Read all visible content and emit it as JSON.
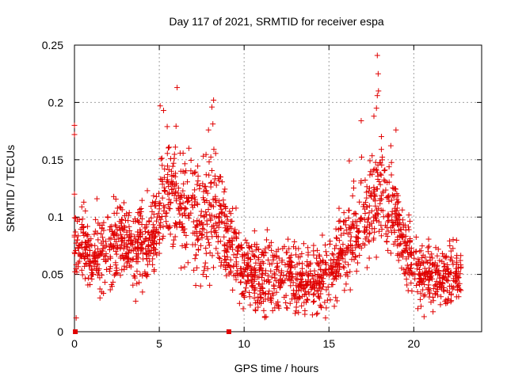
{
  "chart_data": {
    "type": "scatter",
    "title": "Day 117 of 2021, SRMTID for receiver espa",
    "xlabel": "GPS time / hours",
    "ylabel": "SRMTID / TECUs",
    "xlim": [
      0,
      24
    ],
    "ylim": [
      0,
      0.25
    ],
    "x_ticks": [
      0,
      5,
      10,
      15,
      20
    ],
    "x_tick_labels": [
      "0",
      "5",
      "10",
      "15",
      "20"
    ],
    "y_ticks": [
      0,
      0.05,
      0.1,
      0.15,
      0.2,
      0.25
    ],
    "y_tick_labels": [
      "0",
      "0.05",
      "0.1",
      "0.15",
      "0.2",
      "0.25"
    ],
    "grid": true,
    "marker": "+",
    "series_color": "#e00000",
    "profile": [
      {
        "x": 0.0,
        "y": 0.085
      },
      {
        "x": 1.0,
        "y": 0.065
      },
      {
        "x": 2.0,
        "y": 0.075
      },
      {
        "x": 3.0,
        "y": 0.075
      },
      {
        "x": 4.0,
        "y": 0.075
      },
      {
        "x": 4.8,
        "y": 0.085
      },
      {
        "x": 5.2,
        "y": 0.125
      },
      {
        "x": 5.8,
        "y": 0.12
      },
      {
        "x": 6.5,
        "y": 0.105
      },
      {
        "x": 7.5,
        "y": 0.095
      },
      {
        "x": 8.2,
        "y": 0.11
      },
      {
        "x": 9.0,
        "y": 0.085
      },
      {
        "x": 9.8,
        "y": 0.06
      },
      {
        "x": 11.0,
        "y": 0.045
      },
      {
        "x": 12.0,
        "y": 0.05
      },
      {
        "x": 13.0,
        "y": 0.05
      },
      {
        "x": 14.0,
        "y": 0.045
      },
      {
        "x": 15.0,
        "y": 0.05
      },
      {
        "x": 15.8,
        "y": 0.07
      },
      {
        "x": 16.5,
        "y": 0.08
      },
      {
        "x": 17.2,
        "y": 0.1
      },
      {
        "x": 18.0,
        "y": 0.12
      },
      {
        "x": 18.8,
        "y": 0.105
      },
      {
        "x": 19.5,
        "y": 0.07
      },
      {
        "x": 20.5,
        "y": 0.05
      },
      {
        "x": 21.5,
        "y": 0.048
      },
      {
        "x": 22.8,
        "y": 0.05
      }
    ],
    "spread": [
      {
        "x": 0,
        "y": 0.03
      },
      {
        "x": 5,
        "y": 0.035
      },
      {
        "x": 6,
        "y": 0.055
      },
      {
        "x": 8.5,
        "y": 0.045
      },
      {
        "x": 10,
        "y": 0.03
      },
      {
        "x": 15,
        "y": 0.025
      },
      {
        "x": 16.5,
        "y": 0.035
      },
      {
        "x": 18,
        "y": 0.045
      },
      {
        "x": 19.5,
        "y": 0.03
      },
      {
        "x": 23,
        "y": 0.025
      }
    ],
    "points_per_hour": 90,
    "x_end": 22.8,
    "notable_points": [
      {
        "x": 0.0,
        "y": 0.18
      },
      {
        "x": 0.0,
        "y": 0.172
      },
      {
        "x": 0.0,
        "y": 0.12
      },
      {
        "x": 6.05,
        "y": 0.213
      },
      {
        "x": 5.05,
        "y": 0.197
      },
      {
        "x": 5.25,
        "y": 0.193
      },
      {
        "x": 8.2,
        "y": 0.202
      },
      {
        "x": 8.1,
        "y": 0.196
      },
      {
        "x": 7.9,
        "y": 0.176
      },
      {
        "x": 17.85,
        "y": 0.241
      },
      {
        "x": 17.9,
        "y": 0.225
      },
      {
        "x": 17.92,
        "y": 0.21
      },
      {
        "x": 17.85,
        "y": 0.206
      },
      {
        "x": 17.8,
        "y": 0.195
      },
      {
        "x": 17.65,
        "y": 0.188
      },
      {
        "x": 16.9,
        "y": 0.184
      },
      {
        "x": 18.95,
        "y": 0.176
      },
      {
        "x": 16.2,
        "y": 0.149
      },
      {
        "x": 14.8,
        "y": 0.012
      },
      {
        "x": 11.3,
        "y": 0.013
      },
      {
        "x": 0.1,
        "y": 0.012
      }
    ],
    "zero_markers": [
      {
        "x": 0.05,
        "y": 0.0
      },
      {
        "x": 9.1,
        "y": 0.0
      }
    ]
  }
}
